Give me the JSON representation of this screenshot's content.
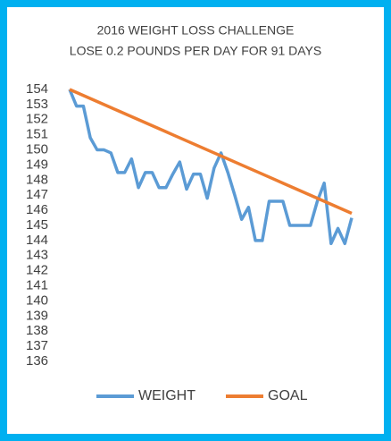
{
  "chart_data": {
    "type": "line",
    "title": [
      "2016 WEIGHT LOSS CHALLENGE",
      "LOSE 0.2 POUNDS PER DAY FOR 91 DAYS"
    ],
    "categories": [
      null,
      null,
      null,
      null,
      null,
      null,
      null,
      null,
      null,
      null,
      null,
      null,
      null,
      null,
      null,
      null,
      null,
      null,
      null,
      null,
      null,
      null,
      null,
      null,
      null,
      null,
      null,
      null,
      null,
      null,
      null,
      null,
      null,
      null,
      null,
      null,
      null,
      null,
      null,
      null,
      null,
      null
    ],
    "series": [
      {
        "name": "WEIGHT",
        "color": "#5b9bd5",
        "values": [
          154,
          152.9,
          152.9,
          150.8,
          150,
          150,
          149.8,
          148.5,
          148.5,
          149.4,
          147.5,
          148.5,
          148.5,
          147.5,
          147.5,
          148.4,
          149.2,
          147.4,
          148.4,
          148.4,
          146.8,
          148.8,
          149.8,
          148.5,
          147,
          145.4,
          146.2,
          144,
          144,
          146.6,
          146.6,
          146.6,
          145,
          145,
          145,
          145,
          146.6,
          147.8,
          143.8,
          144.8,
          143.8,
          145.5
        ]
      },
      {
        "name": "GOAL",
        "color": "#ed7d31",
        "values": [
          154,
          153.8,
          153.6,
          153.4,
          153.2,
          153,
          152.8,
          152.6,
          152.4,
          152.2,
          152,
          151.8,
          151.6,
          151.4,
          151.2,
          151,
          150.8,
          150.6,
          150.4,
          150.2,
          150,
          149.8,
          149.6,
          149.4,
          149.2,
          149,
          148.8,
          148.6,
          148.4,
          148.2,
          148,
          147.8,
          147.6,
          147.4,
          147.2,
          147,
          146.8,
          146.6,
          146.4,
          146.2,
          146,
          145.8
        ]
      }
    ],
    "ylim": [
      136,
      154
    ],
    "yticks": [
      136,
      137,
      138,
      139,
      140,
      141,
      142,
      143,
      144,
      145,
      146,
      147,
      148,
      149,
      150,
      151,
      152,
      153,
      154
    ],
    "legend": "bottom"
  }
}
